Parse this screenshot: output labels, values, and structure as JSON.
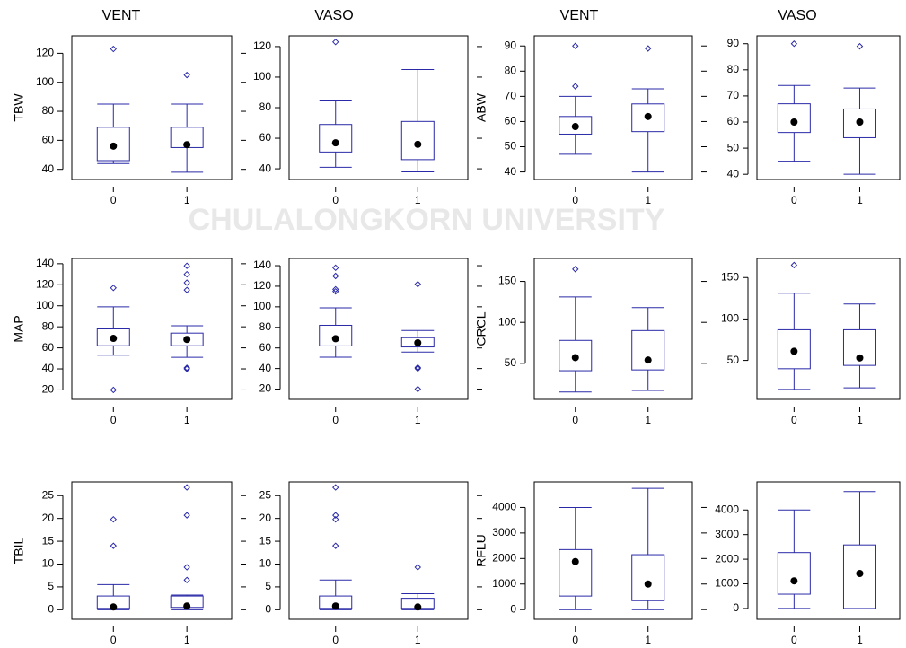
{
  "column_titles": [
    "VENT",
    "VASO",
    "VENT",
    "VASO"
  ],
  "watermark": "CHULALONGKORN UNIVERSITY",
  "chart_data": [
    {
      "type": "box",
      "ylabel": "TBW",
      "categories": [
        "0",
        "1"
      ],
      "ylim": [
        33,
        132
      ],
      "yticks": [
        40,
        60,
        80,
        100,
        120
      ],
      "boxes": [
        {
          "whislo": 44,
          "q1": 46,
          "center": 56,
          "q3": 69,
          "whishi": 85,
          "fliers": [
            123
          ]
        },
        {
          "whislo": 38,
          "q1": 55,
          "center": 57,
          "q3": 69,
          "whishi": 85,
          "fliers": [
            105
          ]
        }
      ]
    },
    {
      "type": "box",
      "categories": [
        "0",
        "1"
      ],
      "ylim": [
        33,
        127
      ],
      "yticks": [
        40,
        60,
        80,
        100,
        120
      ],
      "boxes": [
        {
          "whislo": 41,
          "q1": 51,
          "center": 57,
          "q3": 69,
          "whishi": 85,
          "fliers": [
            123
          ]
        },
        {
          "whislo": 38,
          "q1": 46,
          "center": 56,
          "q3": 71,
          "whishi": 105,
          "fliers": []
        }
      ]
    },
    {
      "type": "box",
      "ylabel": "ABW",
      "categories": [
        "0",
        "1"
      ],
      "ylim": [
        37,
        94
      ],
      "yticks": [
        40,
        50,
        60,
        70,
        80,
        90
      ],
      "boxes": [
        {
          "whislo": 47,
          "q1": 55,
          "center": 58,
          "q3": 62,
          "whishi": 70,
          "fliers": [
            74,
            90
          ]
        },
        {
          "whislo": 40,
          "q1": 56,
          "center": 62,
          "q3": 67,
          "whishi": 73,
          "fliers": [
            89
          ]
        }
      ]
    },
    {
      "type": "box",
      "categories": [
        "0",
        "1"
      ],
      "ylim": [
        38,
        93
      ],
      "yticks": [
        40,
        50,
        60,
        70,
        80,
        90
      ],
      "boxes": [
        {
          "whislo": 45,
          "q1": 56,
          "center": 60,
          "q3": 67,
          "whishi": 74,
          "fliers": [
            90
          ]
        },
        {
          "whislo": 40,
          "q1": 54,
          "center": 60,
          "q3": 65,
          "whishi": 73,
          "fliers": [
            89
          ]
        }
      ]
    },
    {
      "type": "box",
      "ylabel": "MAP",
      "categories": [
        "0",
        "1"
      ],
      "ylim": [
        11,
        145
      ],
      "yticks": [
        20,
        40,
        60,
        80,
        100,
        120,
        140
      ],
      "boxes": [
        {
          "whislo": 53,
          "q1": 62,
          "center": 69,
          "q3": 78,
          "whishi": 99,
          "fliers": [
            117,
            20
          ]
        },
        {
          "whislo": 51,
          "q1": 62,
          "center": 68,
          "q3": 74,
          "whishi": 81,
          "fliers": [
            40,
            41,
            115,
            122,
            130,
            138
          ]
        }
      ]
    },
    {
      "type": "box",
      "categories": [
        "0",
        "1"
      ],
      "ylim": [
        10,
        147
      ],
      "yticks": [
        20,
        40,
        60,
        80,
        100,
        120,
        140
      ],
      "boxes": [
        {
          "whislo": 51,
          "q1": 62,
          "center": 69,
          "q3": 82,
          "whishi": 99,
          "fliers": [
            115,
            117,
            130,
            138
          ]
        },
        {
          "whislo": 56,
          "q1": 61,
          "center": 65,
          "q3": 70,
          "whishi": 77,
          "fliers": [
            122,
            41,
            40,
            20
          ]
        }
      ]
    },
    {
      "type": "box",
      "ylabel": "CRCL",
      "categories": [
        "0",
        "1"
      ],
      "ylim": [
        6,
        178
      ],
      "yticks": [
        50,
        100,
        150
      ],
      "boxes": [
        {
          "whislo": 15,
          "q1": 41,
          "center": 57,
          "q3": 78,
          "whishi": 131,
          "fliers": [
            165
          ]
        },
        {
          "whislo": 17,
          "q1": 42,
          "center": 54,
          "q3": 90,
          "whishi": 118,
          "fliers": []
        }
      ]
    },
    {
      "type": "box",
      "categories": [
        "0",
        "1"
      ],
      "ylim": [
        3,
        173
      ],
      "yticks": [
        50,
        100,
        150
      ],
      "boxes": [
        {
          "whislo": 15,
          "q1": 40,
          "center": 61,
          "q3": 87,
          "whishi": 131,
          "fliers": [
            165
          ]
        },
        {
          "whislo": 17,
          "q1": 44,
          "center": 53,
          "q3": 87,
          "whishi": 118,
          "fliers": []
        }
      ]
    },
    {
      "type": "box",
      "ylabel": "TBIL",
      "categories": [
        "0",
        "1"
      ],
      "ylim": [
        -2.1,
        28
      ],
      "yticks": [
        0,
        5,
        10,
        15,
        20,
        25
      ],
      "boxes": [
        {
          "whislo": 0,
          "q1": 0.3,
          "center": 0.6,
          "q3": 3,
          "whishi": 5.5,
          "fliers": [
            14,
            19.8
          ]
        },
        {
          "whislo": 0,
          "q1": 0.5,
          "center": 0.8,
          "q3": 3,
          "whishi": 3.2,
          "fliers": [
            6.5,
            9.3,
            20.7,
            26.8
          ]
        }
      ]
    },
    {
      "type": "box",
      "categories": [
        "0",
        "1"
      ],
      "ylim": [
        -2.1,
        28
      ],
      "yticks": [
        0,
        5,
        10,
        15,
        20,
        25
      ],
      "boxes": [
        {
          "whislo": 0,
          "q1": 0.3,
          "center": 0.8,
          "q3": 3,
          "whishi": 6.5,
          "fliers": [
            14,
            19.8,
            20.7,
            26.8
          ]
        },
        {
          "whislo": 0,
          "q1": 0.3,
          "center": 0.6,
          "q3": 2.5,
          "whishi": 3.5,
          "fliers": [
            9.3
          ]
        }
      ]
    },
    {
      "type": "box",
      "ylabel": "RFLU",
      "categories": [
        "0",
        "1"
      ],
      "ylim": [
        -380,
        5000
      ],
      "yticks": [
        0,
        1000,
        2000,
        3000,
        4000
      ],
      "boxes": [
        {
          "whislo": 0,
          "q1": 530,
          "center": 1880,
          "q3": 2350,
          "whishi": 4000,
          "fliers": []
        },
        {
          "whislo": 0,
          "q1": 350,
          "center": 1000,
          "q3": 2150,
          "whishi": 4750,
          "fliers": []
        }
      ]
    },
    {
      "type": "box",
      "categories": [
        "0",
        "1"
      ],
      "ylim": [
        -440,
        5140
      ],
      "yticks": [
        0,
        1000,
        2000,
        3000,
        4000
      ],
      "boxes": [
        {
          "whislo": 0,
          "q1": 580,
          "center": 1120,
          "q3": 2270,
          "whishi": 4000,
          "fliers": []
        },
        {
          "whislo": 0,
          "q1": 0,
          "center": 1420,
          "q3": 2580,
          "whishi": 4750,
          "fliers": []
        }
      ]
    }
  ]
}
